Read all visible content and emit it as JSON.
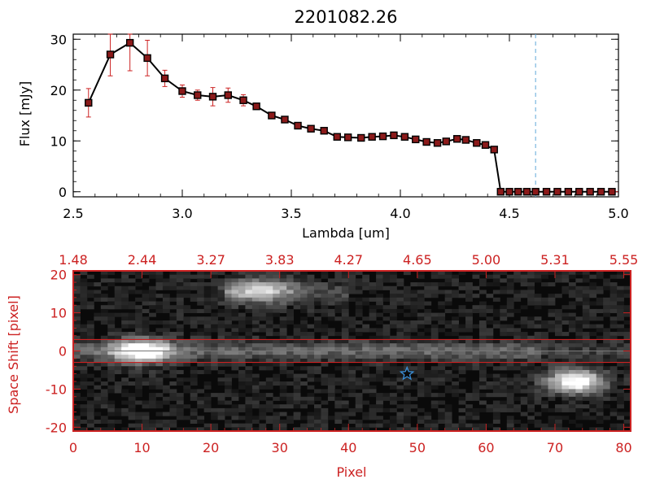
{
  "chart_data": [
    {
      "type": "line",
      "title": "2201082.26",
      "xlabel": "Lambda [um]",
      "ylabel": "Flux [mJy]",
      "xlim": [
        2.5,
        5.0
      ],
      "ylim": [
        -1,
        31
      ],
      "xticks": [
        "2.5",
        "3.0",
        "3.5",
        "4.0",
        "4.5",
        "5.0"
      ],
      "yticks": [
        "0",
        "10",
        "20",
        "30"
      ],
      "xtick_values": [
        2.5,
        3.0,
        3.5,
        4.0,
        4.5,
        5.0
      ],
      "ytick_values": [
        0,
        10,
        20,
        30
      ],
      "vline_x": 4.62,
      "colors": {
        "line": "#000000",
        "marker": "#8b1a1a",
        "error": "#cc2222",
        "vline": "#5fa8d8",
        "axis": "#000000"
      },
      "series": [
        {
          "name": "flux",
          "x": [
            2.57,
            2.67,
            2.76,
            2.84,
            2.92,
            3.0,
            3.07,
            3.14,
            3.21,
            3.28,
            3.34,
            3.41,
            3.47,
            3.53,
            3.59,
            3.65,
            3.71,
            3.76,
            3.82,
            3.87,
            3.92,
            3.97,
            4.02,
            4.07,
            4.12,
            4.17,
            4.21,
            4.26,
            4.3,
            4.35,
            4.39,
            4.43,
            4.46,
            4.5,
            4.54,
            4.58,
            4.62,
            4.67,
            4.72,
            4.77,
            4.82,
            4.87,
            4.92,
            4.97
          ],
          "y": [
            17.5,
            27.0,
            29.3,
            26.3,
            22.3,
            19.8,
            19.0,
            18.7,
            19.0,
            18.0,
            16.8,
            15.0,
            14.2,
            13.0,
            12.4,
            12.0,
            10.8,
            10.7,
            10.6,
            10.8,
            10.9,
            11.1,
            10.8,
            10.3,
            9.8,
            9.6,
            9.9,
            10.4,
            10.2,
            9.6,
            9.2,
            8.3,
            0.0,
            0.0,
            0.0,
            0.0,
            0.0,
            0.0,
            0.0,
            0.0,
            0.0,
            0.0,
            0.0,
            0.0
          ],
          "error": [
            2.8,
            4.2,
            5.5,
            3.5,
            1.6,
            1.2,
            1.0,
            1.8,
            1.4,
            1.1,
            0.6,
            0.4,
            0.3,
            0.3,
            0.3,
            0.3,
            0.3,
            0.3,
            0.3,
            0.3,
            0.3,
            0.3,
            0.3,
            0.3,
            0.3,
            0.3,
            0.3,
            0.3,
            0.3,
            0.3,
            0.3,
            0.4,
            0.3,
            0.3,
            0.3,
            0.3,
            0.3,
            0.3,
            0.3,
            0.3,
            0.3,
            0.3,
            0.3,
            0.3
          ]
        }
      ]
    },
    {
      "type": "heatmap",
      "xlabel": "Pixel",
      "ylabel": "Space Shift [pixel]",
      "xlim": [
        0,
        81
      ],
      "ylim": [
        -21,
        21
      ],
      "xticks": [
        "0",
        "10",
        "20",
        "30",
        "40",
        "50",
        "60",
        "70",
        "80"
      ],
      "xtick_values": [
        0,
        10,
        20,
        30,
        40,
        50,
        60,
        70,
        80
      ],
      "yticks": [
        "-20",
        "-10",
        "0",
        "10",
        "20"
      ],
      "ytick_values": [
        -20,
        -10,
        0,
        10,
        20
      ],
      "top_axis_labels": [
        "1.48",
        "2.44",
        "3.27",
        "3.83",
        "4.27",
        "4.65",
        "5.00",
        "5.31",
        "5.55"
      ],
      "aperture_lines_y": [
        3,
        -3
      ],
      "center_line_y": 0,
      "star_marker": {
        "x": 48.5,
        "y": -6
      },
      "colors": {
        "axis": "#cc2222",
        "star": "#3a8fd8",
        "aperture": "#cc2222"
      },
      "sources": [
        {
          "name": "main",
          "x": 10,
          "y": 0,
          "amp": 0.95
        },
        {
          "name": "upper",
          "x": 27,
          "y": 16,
          "amp": 0.6
        },
        {
          "name": "lower-right",
          "x": 73,
          "y": -8,
          "amp": 1.0
        }
      ]
    }
  ]
}
